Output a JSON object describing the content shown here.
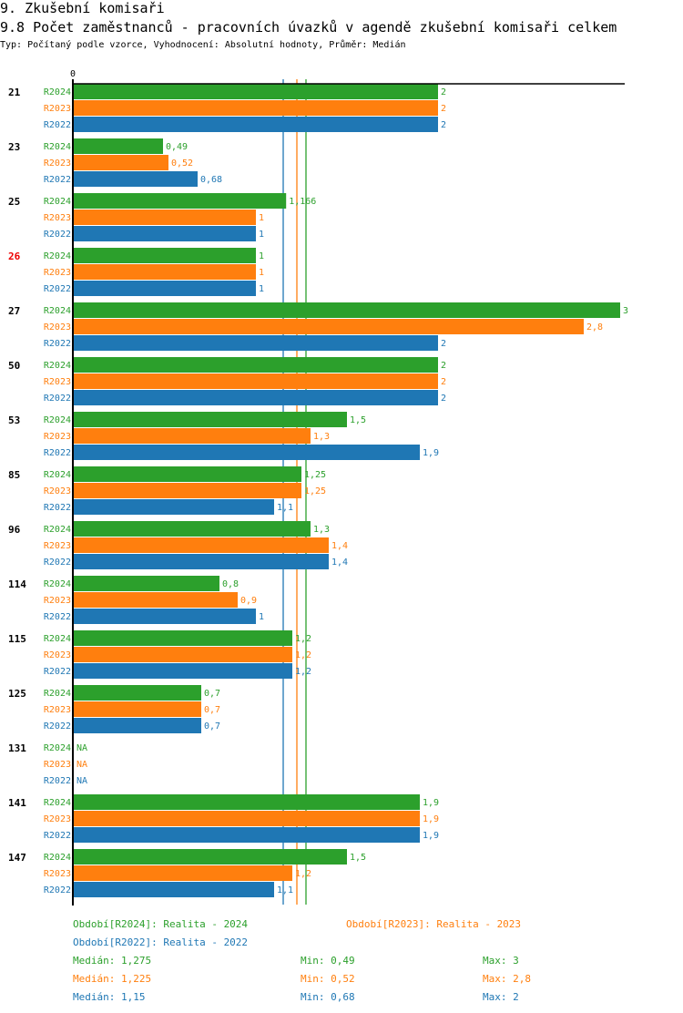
{
  "header": {
    "section": "9. Zkušební komisaři",
    "title": "9.8 Počet zaměstnanců - pracovních úvazků v agendě zkušební komisaři celkem",
    "subtitle": "Typ: Počítaný podle vzorce, Vyhodnocení: Absolutní hodnoty, Průměr: Medián"
  },
  "chart_data": {
    "type": "bar",
    "orientation": "horizontal",
    "xlim": [
      0,
      3
    ],
    "x_tick_labels": [
      "0"
    ],
    "colors": {
      "R2024": "#2ca02c",
      "R2023": "#ff7f0e",
      "R2022": "#1f77b4"
    },
    "series_names": [
      "R2024",
      "R2023",
      "R2022"
    ],
    "categories": [
      {
        "label": "21",
        "highlight": false,
        "values": [
          2,
          2,
          2
        ],
        "labels": [
          "2",
          "2",
          "2"
        ]
      },
      {
        "label": "23",
        "highlight": false,
        "values": [
          0.49,
          0.52,
          0.68
        ],
        "labels": [
          "0,49",
          "0,52",
          "0,68"
        ]
      },
      {
        "label": "25",
        "highlight": false,
        "values": [
          1.166,
          1,
          1
        ],
        "labels": [
          "1,166",
          "1",
          "1"
        ]
      },
      {
        "label": "26",
        "highlight": true,
        "values": [
          1,
          1,
          1
        ],
        "labels": [
          "1",
          "1",
          "1"
        ]
      },
      {
        "label": "27",
        "highlight": false,
        "values": [
          3,
          2.8,
          2
        ],
        "labels": [
          "3",
          "2,8",
          "2"
        ]
      },
      {
        "label": "50",
        "highlight": false,
        "values": [
          2,
          2,
          2
        ],
        "labels": [
          "2",
          "2",
          "2"
        ]
      },
      {
        "label": "53",
        "highlight": false,
        "values": [
          1.5,
          1.3,
          1.9
        ],
        "labels": [
          "1,5",
          "1,3",
          "1,9"
        ]
      },
      {
        "label": "85",
        "highlight": false,
        "values": [
          1.25,
          1.25,
          1.1
        ],
        "labels": [
          "1,25",
          "1,25",
          "1,1"
        ]
      },
      {
        "label": "96",
        "highlight": false,
        "values": [
          1.3,
          1.4,
          1.4
        ],
        "labels": [
          "1,3",
          "1,4",
          "1,4"
        ]
      },
      {
        "label": "114",
        "highlight": false,
        "values": [
          0.8,
          0.9,
          1
        ],
        "labels": [
          "0,8",
          "0,9",
          "1"
        ]
      },
      {
        "label": "115",
        "highlight": false,
        "values": [
          1.2,
          1.2,
          1.2
        ],
        "labels": [
          "1,2",
          "1,2",
          "1,2"
        ]
      },
      {
        "label": "125",
        "highlight": false,
        "values": [
          0.7,
          0.7,
          0.7
        ],
        "labels": [
          "0,7",
          "0,7",
          "0,7"
        ]
      },
      {
        "label": "131",
        "highlight": false,
        "values": [
          null,
          null,
          null
        ],
        "labels": [
          "NA",
          "NA",
          "NA"
        ]
      },
      {
        "label": "141",
        "highlight": false,
        "values": [
          1.9,
          1.9,
          1.9
        ],
        "labels": [
          "1,9",
          "1,9",
          "1,9"
        ]
      },
      {
        "label": "147",
        "highlight": false,
        "values": [
          1.5,
          1.2,
          1.1
        ],
        "labels": [
          "1,5",
          "1,2",
          "1,1"
        ]
      }
    ],
    "medians": {
      "R2024": 1.275,
      "R2023": 1.225,
      "R2022": 1.15
    }
  },
  "legend": {
    "r2024": "Období[R2024]: Realita - 2024",
    "r2023": "Období[R2023]: Realita - 2023",
    "r2022": "Období[R2022]: Realita - 2022",
    "stats": [
      {
        "median": "Medián: 1,275",
        "min": "Min: 0,49",
        "max": "Max: 3"
      },
      {
        "median": "Medián: 1,225",
        "min": "Min: 0,52",
        "max": "Max: 2,8"
      },
      {
        "median": "Medián: 1,15",
        "min": "Min: 0,68",
        "max": "Max: 2"
      }
    ]
  }
}
